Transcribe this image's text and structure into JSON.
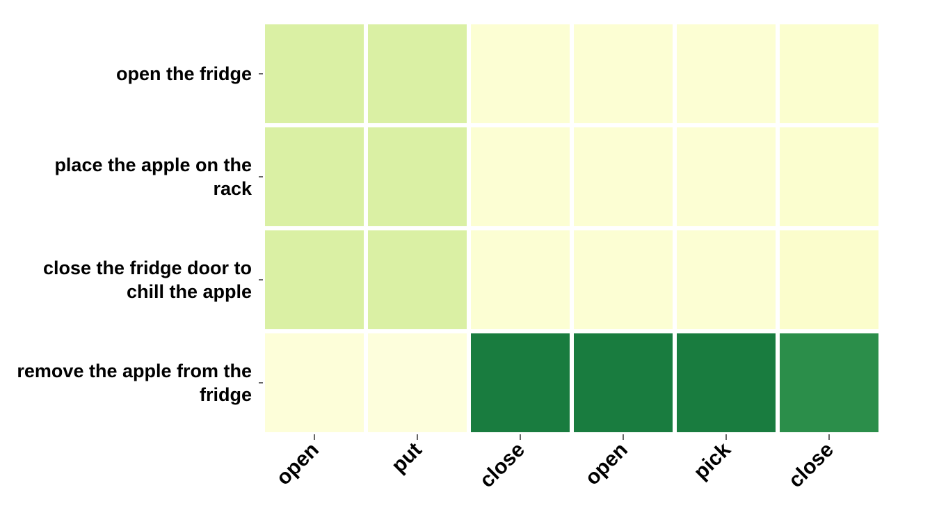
{
  "chart_data": {
    "type": "heatmap",
    "x_categories": [
      "open",
      "put",
      "close",
      "open",
      "pick",
      "close"
    ],
    "y_categories": [
      [
        "open the fridge"
      ],
      [
        "place the apple on the",
        "rack"
      ],
      [
        "close the fridge door to",
        "chill the apple"
      ],
      [
        "remove the apple from the",
        "fridge"
      ]
    ],
    "values": [
      [
        0.28,
        0.28,
        0.06,
        0.06,
        0.06,
        0.07
      ],
      [
        0.28,
        0.28,
        0.06,
        0.06,
        0.06,
        0.07
      ],
      [
        0.28,
        0.28,
        0.06,
        0.06,
        0.06,
        0.08
      ],
      [
        0.04,
        0.03,
        0.9,
        0.9,
        0.9,
        0.82
      ]
    ],
    "colorscale": [
      "#ffffe5",
      "#f7fcb9",
      "#d9f0a3",
      "#addd8e",
      "#78c679",
      "#41ab5d",
      "#238443",
      "#006837"
    ],
    "grid": false,
    "colorbar": false
  }
}
